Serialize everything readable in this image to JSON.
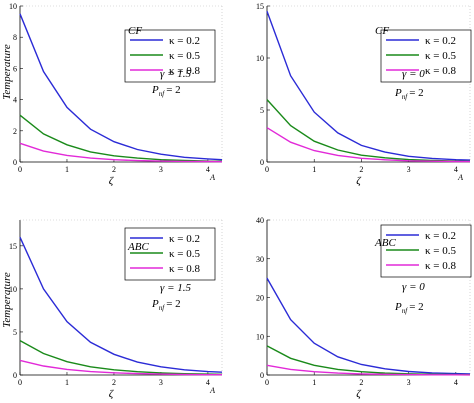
{
  "chart_data": [
    {
      "type": "line",
      "xlabel": "ζ",
      "ylabel": "Temperature",
      "xlim": [
        0,
        4.3
      ],
      "ylim": [
        0,
        10
      ],
      "xticks": [
        "0",
        "1",
        "2",
        "3",
        "4"
      ],
      "xend_label": "A",
      "yticks": [
        "0",
        "2",
        "4",
        "6",
        "8",
        "10"
      ],
      "model_label": "CF",
      "param1": "γ = 1.5",
      "param2_prefix": "P",
      "param2_sub": "nf",
      "param2_value": "= 2",
      "legend": [
        "κ = 0.2",
        "κ = 0.5",
        "κ = 0.8"
      ],
      "series": [
        {
          "name": "κ = 0.2",
          "color": "#2b2bd6",
          "x": [
            0,
            0.5,
            1,
            1.5,
            2,
            2.5,
            3,
            3.5,
            4,
            4.3
          ],
          "y": [
            9.5,
            5.8,
            3.5,
            2.1,
            1.3,
            0.8,
            0.5,
            0.3,
            0.2,
            0.15
          ]
        },
        {
          "name": "κ = 0.5",
          "color": "#1a8a1a",
          "x": [
            0,
            0.5,
            1,
            1.5,
            2,
            2.5,
            3,
            3.5,
            4,
            4.3
          ],
          "y": [
            3.0,
            1.8,
            1.1,
            0.65,
            0.4,
            0.25,
            0.15,
            0.1,
            0.06,
            0.05
          ]
        },
        {
          "name": "κ = 0.8",
          "color": "#e22ad8",
          "x": [
            0,
            0.5,
            1,
            1.5,
            2,
            2.5,
            3,
            3.5,
            4,
            4.3
          ],
          "y": [
            1.2,
            0.7,
            0.42,
            0.25,
            0.15,
            0.09,
            0.06,
            0.04,
            0.03,
            0.02
          ]
        }
      ]
    },
    {
      "type": "line",
      "xlabel": "ζ",
      "ylabel": "",
      "xlim": [
        0,
        4.3
      ],
      "ylim": [
        0,
        15
      ],
      "xticks": [
        "0",
        "1",
        "2",
        "3",
        "4"
      ],
      "xend_label": "A",
      "yticks": [
        "0",
        "5",
        "10",
        "15"
      ],
      "model_label": "CF",
      "param1": "γ = 0",
      "param2_prefix": "P",
      "param2_sub": "nf",
      "param2_value": "= 2",
      "legend": [
        "κ = 0.2",
        "κ = 0.5",
        "κ = 0.8"
      ],
      "series": [
        {
          "name": "κ = 0.2",
          "color": "#2b2bd6",
          "x": [
            0,
            0.5,
            1,
            1.5,
            2,
            2.5,
            3,
            3.5,
            4,
            4.3
          ],
          "y": [
            14.5,
            8.3,
            4.8,
            2.8,
            1.6,
            0.95,
            0.55,
            0.35,
            0.22,
            0.18
          ]
        },
        {
          "name": "κ = 0.5",
          "color": "#1a8a1a",
          "x": [
            0,
            0.5,
            1,
            1.5,
            2,
            2.5,
            3,
            3.5,
            4,
            4.3
          ],
          "y": [
            6.0,
            3.5,
            2.0,
            1.15,
            0.65,
            0.4,
            0.23,
            0.14,
            0.09,
            0.07
          ]
        },
        {
          "name": "κ = 0.8",
          "color": "#e22ad8",
          "x": [
            0,
            0.5,
            1,
            1.5,
            2,
            2.5,
            3,
            3.5,
            4,
            4.3
          ],
          "y": [
            3.3,
            1.9,
            1.1,
            0.63,
            0.36,
            0.21,
            0.12,
            0.08,
            0.05,
            0.04
          ]
        }
      ]
    },
    {
      "type": "line",
      "xlabel": "ζ",
      "ylabel": "Temperature",
      "xlim": [
        0,
        4.3
      ],
      "ylim": [
        0,
        18
      ],
      "xticks": [
        "0",
        "1",
        "2",
        "3",
        "4"
      ],
      "xend_label": "A",
      "yticks": [
        "0",
        "5",
        "10",
        "15"
      ],
      "model_label": "ABC",
      "param1": "γ = 1.5",
      "param2_prefix": "P",
      "param2_sub": "nf",
      "param2_value": "= 2",
      "legend": [
        "κ = 0.2",
        "κ = 0.5",
        "κ = 0.8"
      ],
      "series": [
        {
          "name": "κ = 0.2",
          "color": "#2b2bd6",
          "x": [
            0,
            0.5,
            1,
            1.5,
            2,
            2.5,
            3,
            3.5,
            4,
            4.3
          ],
          "y": [
            16.0,
            10.0,
            6.2,
            3.8,
            2.4,
            1.5,
            0.95,
            0.6,
            0.4,
            0.32
          ]
        },
        {
          "name": "κ = 0.5",
          "color": "#1a8a1a",
          "x": [
            0,
            0.5,
            1,
            1.5,
            2,
            2.5,
            3,
            3.5,
            4,
            4.3
          ],
          "y": [
            4.0,
            2.5,
            1.55,
            0.95,
            0.6,
            0.38,
            0.24,
            0.15,
            0.1,
            0.08
          ]
        },
        {
          "name": "κ = 0.8",
          "color": "#e22ad8",
          "x": [
            0,
            0.5,
            1,
            1.5,
            2,
            2.5,
            3,
            3.5,
            4,
            4.3
          ],
          "y": [
            1.7,
            1.05,
            0.65,
            0.4,
            0.25,
            0.16,
            0.1,
            0.06,
            0.04,
            0.03
          ]
        }
      ]
    },
    {
      "type": "line",
      "xlabel": "ζ",
      "ylabel": "",
      "xlim": [
        0,
        4.3
      ],
      "ylim": [
        0,
        40
      ],
      "xticks": [
        "0",
        "1",
        "2",
        "3",
        "4"
      ],
      "xend_label": "",
      "yticks": [
        "0",
        "10",
        "20",
        "30",
        "40"
      ],
      "model_label": "ABC",
      "param1": "γ = 0",
      "param2_prefix": "P",
      "param2_sub": "nf",
      "param2_value": "= 2",
      "legend": [
        "κ = 0.2",
        "κ = 0.5",
        "κ = 0.8"
      ],
      "series": [
        {
          "name": "κ = 0.2",
          "color": "#2b2bd6",
          "x": [
            0,
            0.5,
            1,
            1.5,
            2,
            2.5,
            3,
            3.5,
            4,
            4.3
          ],
          "y": [
            25.0,
            14.3,
            8.2,
            4.7,
            2.7,
            1.6,
            0.9,
            0.55,
            0.35,
            0.28
          ]
        },
        {
          "name": "κ = 0.5",
          "color": "#1a8a1a",
          "x": [
            0,
            0.5,
            1,
            1.5,
            2,
            2.5,
            3,
            3.5,
            4,
            4.3
          ],
          "y": [
            7.5,
            4.3,
            2.5,
            1.45,
            0.85,
            0.5,
            0.3,
            0.18,
            0.11,
            0.09
          ]
        },
        {
          "name": "κ = 0.8",
          "color": "#e22ad8",
          "x": [
            0,
            0.5,
            1,
            1.5,
            2,
            2.5,
            3,
            3.5,
            4,
            4.3
          ],
          "y": [
            2.5,
            1.45,
            0.85,
            0.5,
            0.29,
            0.17,
            0.1,
            0.06,
            0.04,
            0.03
          ]
        }
      ]
    }
  ]
}
